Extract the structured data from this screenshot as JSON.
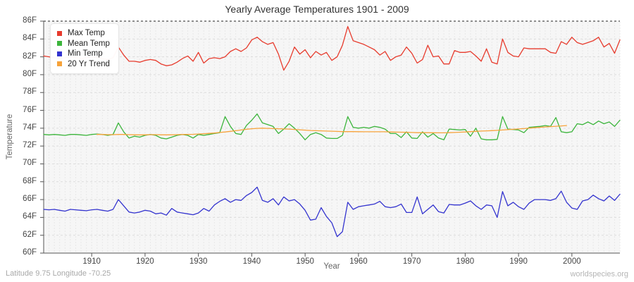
{
  "page": {
    "footer_left": "Latitude 9.75 Longitude -70.25",
    "footer_right": "worldspecies.org"
  },
  "chart_data": {
    "type": "line",
    "title": "Yearly Average Temperatures 1901 - 2009",
    "xlabel": "Year",
    "ylabel": "Temperature",
    "xlim": [
      1901,
      2009
    ],
    "ylim": [
      60,
      86
    ],
    "x_ticks": [
      1910,
      1920,
      1930,
      1940,
      1950,
      1960,
      1970,
      1980,
      1990,
      2000
    ],
    "y_ticks": [
      60,
      62,
      64,
      66,
      68,
      70,
      72,
      74,
      76,
      78,
      80,
      82,
      84,
      86
    ],
    "y_tick_suffix": "F",
    "grid": true,
    "legend_position": "top-left",
    "background": "#f6f6f6",
    "series": [
      {
        "name": "Max Temp",
        "color": "#e73b2d",
        "values": [
          82.1,
          82.0,
          81.9,
          81.8,
          81.9,
          82.0,
          81.9,
          81.8,
          81.9,
          82.0,
          81.9,
          81.8,
          81.7,
          81.9,
          83.1,
          82.2,
          81.5,
          81.5,
          81.4,
          81.6,
          81.7,
          81.6,
          81.2,
          81.0,
          81.1,
          81.4,
          81.8,
          82.1,
          81.5,
          82.5,
          81.3,
          81.8,
          81.9,
          81.8,
          82.0,
          82.6,
          82.9,
          82.6,
          83.0,
          83.9,
          84.2,
          83.7,
          83.4,
          83.6,
          82.3,
          80.5,
          81.5,
          83.1,
          82.3,
          82.8,
          81.9,
          82.6,
          82.2,
          82.5,
          81.6,
          82.0,
          83.3,
          85.4,
          83.8,
          83.6,
          83.4,
          83.1,
          82.8,
          82.2,
          82.6,
          81.6,
          82.0,
          82.2,
          83.1,
          82.4,
          81.3,
          81.7,
          83.3,
          82.0,
          82.1,
          81.2,
          81.2,
          82.7,
          82.5,
          82.5,
          82.6,
          82.1,
          81.5,
          82.9,
          81.4,
          81.2,
          84.0,
          82.5,
          82.1,
          82.0,
          83.0,
          82.9,
          82.9,
          82.9,
          82.9,
          82.5,
          82.4,
          83.7,
          83.4,
          84.2,
          83.6,
          83.4,
          83.6,
          83.8,
          84.2,
          83.1,
          83.5,
          82.4,
          83.9
        ]
      },
      {
        "name": "Mean Temp",
        "color": "#3cb53c",
        "values": [
          73.3,
          73.25,
          73.3,
          73.25,
          73.2,
          73.3,
          73.3,
          73.25,
          73.2,
          73.3,
          73.35,
          73.3,
          73.2,
          73.3,
          74.6,
          73.6,
          72.9,
          73.1,
          73.0,
          73.2,
          73.3,
          73.2,
          72.9,
          72.8,
          73.0,
          73.2,
          73.3,
          73.2,
          72.9,
          73.3,
          73.2,
          73.3,
          73.4,
          73.5,
          75.3,
          74.2,
          73.4,
          73.3,
          74.3,
          74.9,
          75.6,
          74.6,
          74.4,
          74.2,
          73.4,
          73.9,
          74.5,
          74.0,
          73.4,
          72.7,
          73.3,
          73.5,
          73.3,
          72.9,
          72.85,
          72.85,
          73.2,
          75.3,
          74.1,
          74.0,
          74.1,
          74.0,
          74.2,
          74.1,
          73.9,
          73.4,
          73.4,
          72.95,
          73.6,
          72.9,
          72.85,
          73.6,
          73.0,
          73.4,
          72.9,
          72.7,
          73.9,
          73.85,
          73.8,
          73.85,
          73.1,
          74.0,
          72.8,
          72.7,
          72.7,
          72.75,
          75.3,
          73.9,
          73.85,
          73.8,
          73.5,
          74.1,
          74.15,
          74.2,
          74.3,
          74.2,
          75.2,
          73.6,
          73.5,
          73.6,
          74.5,
          74.4,
          74.7,
          74.4,
          74.8,
          74.5,
          74.7,
          74.2,
          74.9
        ]
      },
      {
        "name": "Min Temp",
        "color": "#3434cf",
        "values": [
          64.9,
          64.85,
          64.9,
          64.8,
          64.7,
          64.9,
          64.85,
          64.8,
          64.75,
          64.85,
          64.9,
          64.8,
          64.7,
          64.9,
          66.0,
          65.3,
          64.6,
          64.5,
          64.6,
          64.8,
          64.7,
          64.4,
          64.5,
          64.25,
          65.0,
          64.6,
          64.5,
          64.4,
          64.3,
          64.5,
          65.0,
          64.7,
          65.4,
          65.8,
          66.1,
          65.7,
          66.0,
          65.9,
          66.45,
          66.8,
          67.4,
          65.9,
          65.7,
          66.1,
          65.4,
          66.3,
          65.85,
          66.0,
          65.5,
          64.8,
          63.7,
          63.8,
          65.1,
          64.1,
          63.4,
          61.85,
          62.4,
          65.7,
          64.9,
          65.2,
          65.3,
          65.4,
          65.5,
          65.8,
          65.2,
          65.1,
          65.2,
          65.5,
          64.55,
          64.55,
          66.3,
          64.4,
          64.9,
          65.4,
          64.65,
          64.5,
          65.45,
          65.4,
          65.4,
          65.6,
          65.85,
          65.3,
          64.9,
          65.4,
          65.3,
          64.0,
          66.9,
          65.3,
          65.7,
          65.2,
          64.9,
          65.6,
          66.0,
          66.0,
          66.0,
          65.9,
          66.1,
          66.95,
          65.7,
          65.05,
          64.9,
          65.85,
          66.0,
          66.5,
          66.1,
          65.85,
          66.4,
          65.9,
          66.6
        ]
      },
      {
        "name": "20 Yr Trend",
        "color": "#f7a33b",
        "values": [
          null,
          null,
          null,
          null,
          null,
          null,
          null,
          null,
          null,
          null,
          73.3,
          73.3,
          73.28,
          73.28,
          73.3,
          73.3,
          73.28,
          73.26,
          73.25,
          73.26,
          73.28,
          73.28,
          73.26,
          73.25,
          73.26,
          73.28,
          73.3,
          73.3,
          73.32,
          73.35,
          73.38,
          73.42,
          73.46,
          73.52,
          73.58,
          73.65,
          73.72,
          73.8,
          73.88,
          73.94,
          73.98,
          74.0,
          73.98,
          73.96,
          73.94,
          73.92,
          73.9,
          73.86,
          73.82,
          73.78,
          73.74,
          73.72,
          73.7,
          73.68,
          73.66,
          73.64,
          73.62,
          73.62,
          73.62,
          73.61,
          73.6,
          73.6,
          73.6,
          73.6,
          73.6,
          73.58,
          73.56,
          73.55,
          73.54,
          73.52,
          73.5,
          73.5,
          73.5,
          73.49,
          73.48,
          73.48,
          73.5,
          73.52,
          73.55,
          73.58,
          73.62,
          73.65,
          73.68,
          73.7,
          73.73,
          73.76,
          73.8,
          73.84,
          73.88,
          73.92,
          73.96,
          74.0,
          74.05,
          74.1,
          74.14,
          74.18,
          74.22,
          74.26,
          74.3,
          null,
          null,
          null,
          null,
          null,
          null,
          null,
          null,
          null,
          null
        ]
      }
    ]
  }
}
